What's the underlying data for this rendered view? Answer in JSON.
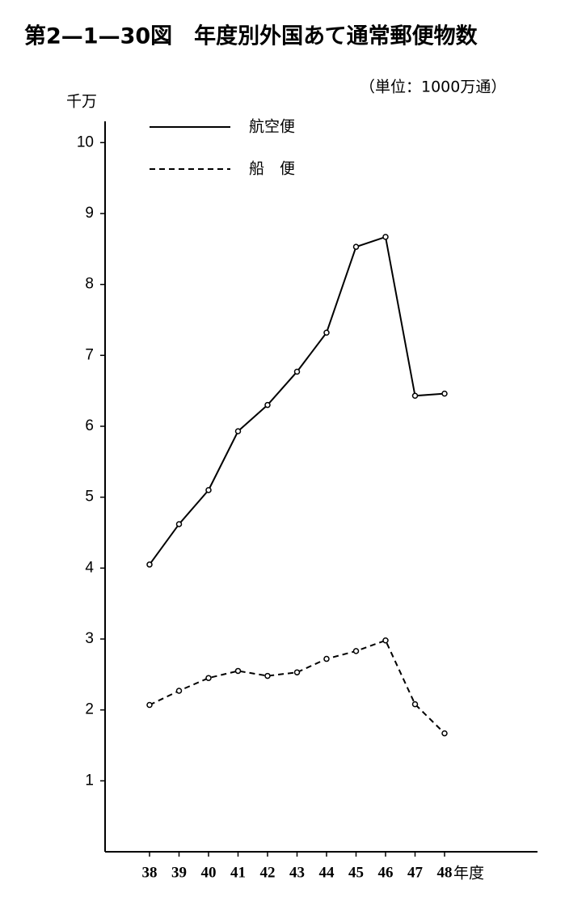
{
  "chart_data": {
    "type": "line",
    "title": "第2—1—30図　年度別外国あて通常郵便物数",
    "unit_note": "（単位：1000万通）",
    "y_label": "千万",
    "x_label": "年度",
    "categories": [
      "38",
      "39",
      "40",
      "41",
      "42",
      "43",
      "44",
      "45",
      "46",
      "47",
      "48"
    ],
    "series": [
      {
        "name": "航空便",
        "color": "#000000",
        "line_style": "solid",
        "values": [
          4.05,
          4.62,
          5.1,
          5.93,
          6.3,
          6.77,
          7.32,
          8.53,
          8.67,
          6.43,
          6.46
        ]
      },
      {
        "name": "船　便",
        "color": "#000000",
        "line_style": "dashed",
        "values": [
          2.07,
          2.27,
          2.45,
          2.55,
          2.48,
          2.53,
          2.72,
          2.83,
          2.98,
          2.08,
          1.67
        ]
      }
    ],
    "ylim": [
      0,
      10.3
    ],
    "yticks": [
      1,
      2,
      3,
      4,
      5,
      6,
      7,
      8,
      9,
      10
    ]
  }
}
